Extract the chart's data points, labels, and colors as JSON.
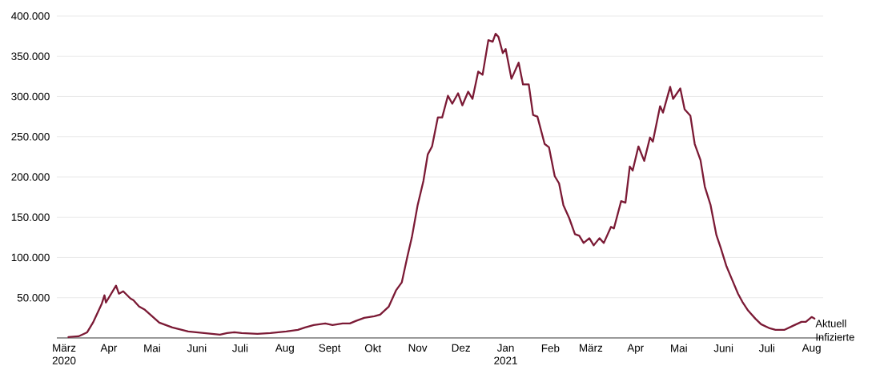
{
  "chart_data": {
    "type": "line",
    "x": [
      "2020-03-04",
      "2020-03-11",
      "2020-03-17",
      "2020-03-21",
      "2020-03-27",
      "2020-03-29",
      "2020-03-30",
      "2020-04-06",
      "2020-04-08",
      "2020-04-11",
      "2020-04-16",
      "2020-04-18",
      "2020-04-22",
      "2020-04-26",
      "2020-05-01",
      "2020-05-06",
      "2020-05-15",
      "2020-05-26",
      "2020-06-06",
      "2020-06-17",
      "2020-06-22",
      "2020-06-27",
      "2020-07-02",
      "2020-07-13",
      "2020-07-22",
      "2020-08-02",
      "2020-08-10",
      "2020-08-15",
      "2020-08-21",
      "2020-08-29",
      "2020-09-03",
      "2020-09-10",
      "2020-09-15",
      "2020-09-19",
      "2020-09-25",
      "2020-10-02",
      "2020-10-06",
      "2020-10-12",
      "2020-10-17",
      "2020-10-21",
      "2020-10-25",
      "2020-10-28",
      "2020-11-01",
      "2020-11-05",
      "2020-11-08",
      "2020-11-11",
      "2020-11-15",
      "2020-11-18",
      "2020-11-22",
      "2020-11-25",
      "2020-11-29",
      "2020-12-02",
      "2020-12-06",
      "2020-12-09",
      "2020-12-13",
      "2020-12-16",
      "2020-12-20",
      "2020-12-23",
      "2020-12-25",
      "2020-12-27",
      "2020-12-30",
      "2021-01-01",
      "2021-01-05",
      "2021-01-10",
      "2021-01-13",
      "2021-01-17",
      "2021-01-20",
      "2021-01-23",
      "2021-01-28",
      "2021-01-31",
      "2021-02-04",
      "2021-02-07",
      "2021-02-10",
      "2021-02-14",
      "2021-02-18",
      "2021-02-21",
      "2021-02-24",
      "2021-02-28",
      "2021-03-03",
      "2021-03-07",
      "2021-03-10",
      "2021-03-15",
      "2021-03-17",
      "2021-03-22",
      "2021-03-25",
      "2021-03-28",
      "2021-03-30",
      "2021-04-03",
      "2021-04-07",
      "2021-04-11",
      "2021-04-13",
      "2021-04-18",
      "2021-04-20",
      "2021-04-25",
      "2021-04-27",
      "2021-05-02",
      "2021-05-05",
      "2021-05-09",
      "2021-05-12",
      "2021-05-16",
      "2021-05-19",
      "2021-05-23",
      "2021-05-27",
      "2021-05-30",
      "2021-06-03",
      "2021-06-07",
      "2021-06-11",
      "2021-06-14",
      "2021-06-18",
      "2021-06-23",
      "2021-06-27",
      "2021-07-03",
      "2021-07-07",
      "2021-07-13",
      "2021-07-19",
      "2021-07-25",
      "2021-07-28",
      "2021-08-01",
      "2021-08-03"
    ],
    "series": [
      {
        "name": "Aktuell Infizierte",
        "color": "#7b1a35",
        "values": [
          1000,
          2000,
          7000,
          19000,
          42000,
          53000,
          44000,
          65000,
          55000,
          58000,
          49000,
          47000,
          39000,
          35000,
          27000,
          19000,
          13000,
          8000,
          6000,
          4000,
          6000,
          7000,
          6000,
          5000,
          6000,
          8000,
          10000,
          13000,
          16000,
          18000,
          16000,
          18000,
          18000,
          21000,
          25000,
          27000,
          29000,
          39000,
          59000,
          69000,
          102000,
          125000,
          165000,
          195000,
          228000,
          238000,
          274000,
          274000,
          301000,
          291000,
          304000,
          289000,
          306000,
          297000,
          331000,
          327000,
          370000,
          368000,
          378000,
          374000,
          354000,
          359000,
          322000,
          342000,
          315000,
          315000,
          277000,
          275000,
          241000,
          237000,
          201000,
          192000,
          165000,
          149000,
          129000,
          127000,
          118000,
          124000,
          115000,
          124000,
          118000,
          138000,
          136000,
          170000,
          168000,
          213000,
          208000,
          238000,
          220000,
          249000,
          244000,
          288000,
          280000,
          312000,
          297000,
          310000,
          284000,
          276000,
          241000,
          221000,
          188000,
          165000,
          128000,
          112000,
          89000,
          72000,
          55000,
          45000,
          34000,
          24000,
          17000,
          12000,
          10000,
          10000,
          15000,
          20000,
          20000,
          26000,
          24000
        ]
      }
    ],
    "xlim": [
      "2020-02-25",
      "2021-08-09"
    ],
    "ylim": [
      0,
      400000
    ],
    "xticks": [
      {
        "value": "2020-03-01",
        "label": "März 2020"
      },
      {
        "value": "2020-04-01",
        "label": "Apr"
      },
      {
        "value": "2020-05-01",
        "label": "Mai"
      },
      {
        "value": "2020-06-01",
        "label": "Juni"
      },
      {
        "value": "2020-07-01",
        "label": "Juli"
      },
      {
        "value": "2020-08-01",
        "label": "Aug"
      },
      {
        "value": "2020-09-01",
        "label": "Sept"
      },
      {
        "value": "2020-10-01",
        "label": "Okt"
      },
      {
        "value": "2020-11-01",
        "label": "Nov"
      },
      {
        "value": "2020-12-01",
        "label": "Dez"
      },
      {
        "value": "2021-01-01",
        "label": "Jan 2021"
      },
      {
        "value": "2021-02-01",
        "label": "Feb"
      },
      {
        "value": "2021-03-01",
        "label": "März"
      },
      {
        "value": "2021-04-01",
        "label": "Apr"
      },
      {
        "value": "2021-05-01",
        "label": "Mai"
      },
      {
        "value": "2021-06-01",
        "label": "Juni"
      },
      {
        "value": "2021-07-01",
        "label": "Juli"
      },
      {
        "value": "2021-08-01",
        "label": "Aug"
      }
    ],
    "yticks": [
      {
        "value": 50000,
        "label": "50.000"
      },
      {
        "value": 100000,
        "label": "100.000"
      },
      {
        "value": 150000,
        "label": "150.000"
      },
      {
        "value": 200000,
        "label": "200.000"
      },
      {
        "value": 250000,
        "label": "250.000"
      },
      {
        "value": 300000,
        "label": "300.000"
      },
      {
        "value": 350000,
        "label": "350.000"
      },
      {
        "value": 400000,
        "label": "400.000"
      }
    ],
    "grid": "y"
  }
}
